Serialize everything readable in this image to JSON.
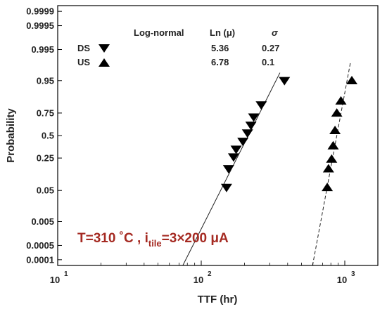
{
  "chart_data": {
    "type": "scatter",
    "title": "",
    "xlabel": "TTF (hr)",
    "ylabel": "Probability",
    "x_scale": "log",
    "y_scale": "lognormal-probability",
    "xlim": [
      10,
      1700
    ],
    "ylim": [
      5e-05,
      0.99995
    ],
    "x_ticks": [
      10,
      100,
      1000
    ],
    "x_tick_labels": [
      "10",
      "10",
      "10"
    ],
    "x_tick_exponents": [
      "1",
      "2",
      "3"
    ],
    "y_ticks": [
      0.0001,
      0.0005,
      0.005,
      0.05,
      0.25,
      0.5,
      0.75,
      0.95,
      0.995,
      0.9995,
      0.9999
    ],
    "y_tick_labels": [
      "0.0001",
      "0.0005",
      "0.005",
      "0.05",
      "0.25",
      "0.5",
      "0.75",
      "0.95",
      "0.995",
      "0.9995",
      "0.9999"
    ],
    "grid": false,
    "legend_header": {
      "model": "Log-normal",
      "mu": "Ln (μ)",
      "sigma": "σ"
    },
    "series": [
      {
        "name": "DS",
        "marker": "triangle-down",
        "color": "#000000",
        "mu_value": "5.36",
        "sigma_value": "0.27",
        "fit_line": "solid",
        "ln_mu": 5.36,
        "sigma": 0.27,
        "x": [
          150,
          155,
          168,
          175,
          195,
          210,
          222,
          232,
          262,
          380
        ],
        "y": [
          0.06,
          0.16,
          0.26,
          0.34,
          0.43,
          0.53,
          0.62,
          0.71,
          0.82,
          0.95
        ]
      },
      {
        "name": "US",
        "marker": "triangle-up",
        "color": "#000000",
        "mu_value": "6.78",
        "sigma_value": "0.1",
        "fit_line": "dashed",
        "ln_mu": 6.78,
        "sigma": 0.1,
        "x": [
          755,
          770,
          810,
          830,
          855,
          880,
          940,
          1120
        ],
        "y": [
          0.06,
          0.16,
          0.24,
          0.38,
          0.56,
          0.75,
          0.85,
          0.95
        ]
      }
    ],
    "annotation": {
      "prefix": "T=310 ˚C , i",
      "subscript": "tile",
      "suffix": "=3×200 μA",
      "color": "#a52a22"
    }
  }
}
